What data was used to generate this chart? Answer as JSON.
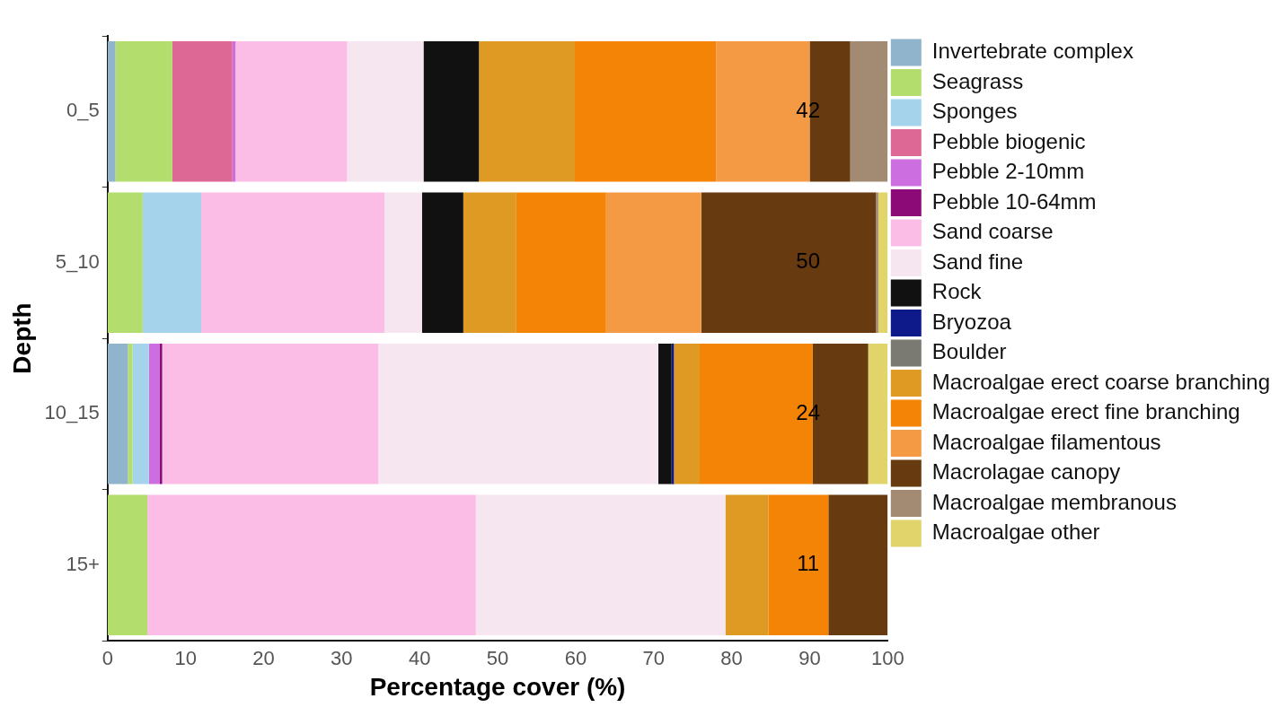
{
  "chart_data": {
    "type": "bar",
    "orientation": "horizontal",
    "stacked": true,
    "xlabel": "Percentage cover (%)",
    "ylabel": "Depth",
    "categories": [
      "0_5",
      "5_10",
      "10_15",
      "15+"
    ],
    "xlim": [
      0,
      100
    ],
    "xticks": [
      0,
      10,
      20,
      30,
      40,
      50,
      60,
      70,
      80,
      90,
      100
    ],
    "grid": false,
    "legend": "right",
    "series": [
      {
        "name": "Invertebrate complex",
        "color": "#8fb4cc",
        "values": [
          1.0,
          0,
          2.6,
          0
        ]
      },
      {
        "name": "Seagrass",
        "color": "#b3dd6c",
        "values": [
          7.3,
          4.5,
          0.6,
          5.1
        ]
      },
      {
        "name": "Sponges",
        "color": "#a6d3ec",
        "values": [
          0,
          7.5,
          2.1,
          0
        ]
      },
      {
        "name": "Pebble biogenic",
        "color": "#dd6895",
        "values": [
          7.7,
          0,
          0,
          0
        ]
      },
      {
        "name": "Pebble 2-10mm",
        "color": "#cc6ee0",
        "values": [
          0.4,
          0,
          1.4,
          0
        ]
      },
      {
        "name": "Pebble 10-64mm",
        "color": "#8b0a78",
        "values": [
          0,
          0,
          0.3,
          0
        ]
      },
      {
        "name": "Sand coarse",
        "color": "#fbbde6",
        "values": [
          14.3,
          23.5,
          27.7,
          42.1
        ]
      },
      {
        "name": "Sand fine",
        "color": "#f5e6f0",
        "values": [
          9.8,
          4.8,
          35.9,
          32.0
        ]
      },
      {
        "name": "Rock",
        "color": "#111111",
        "values": [
          7.1,
          5.3,
          1.7,
          0
        ]
      },
      {
        "name": "Bryozoa",
        "color": "#0f1a8a",
        "values": [
          0,
          0,
          0.3,
          0
        ]
      },
      {
        "name": "Boulder",
        "color": "#7a7a72",
        "values": [
          0,
          0,
          0,
          0
        ]
      },
      {
        "name": "Macroalgae erect coarse branching",
        "color": "#de9a22",
        "values": [
          12.3,
          6.8,
          3.3,
          5.5
        ]
      },
      {
        "name": "Macroalgae erect fine branching",
        "color": "#f48406",
        "values": [
          18.1,
          11.5,
          14.5,
          7.7
        ]
      },
      {
        "name": "Macroalgae filamentous",
        "color": "#f49a45",
        "values": [
          12.0,
          12.2,
          0,
          0
        ]
      },
      {
        "name": "Macrolagae canopy",
        "color": "#683a10",
        "values": [
          5.2,
          22.4,
          7.1,
          7.6
        ]
      },
      {
        "name": "Macroalgae membranous",
        "color": "#a38a72",
        "values": [
          4.8,
          0.3,
          0,
          0
        ]
      },
      {
        "name": "Macroalgae other",
        "color": "#e0d46a",
        "values": [
          0,
          1.2,
          2.5,
          0
        ]
      }
    ],
    "annotations": [
      "42",
      "50",
      "24",
      "11"
    ]
  }
}
